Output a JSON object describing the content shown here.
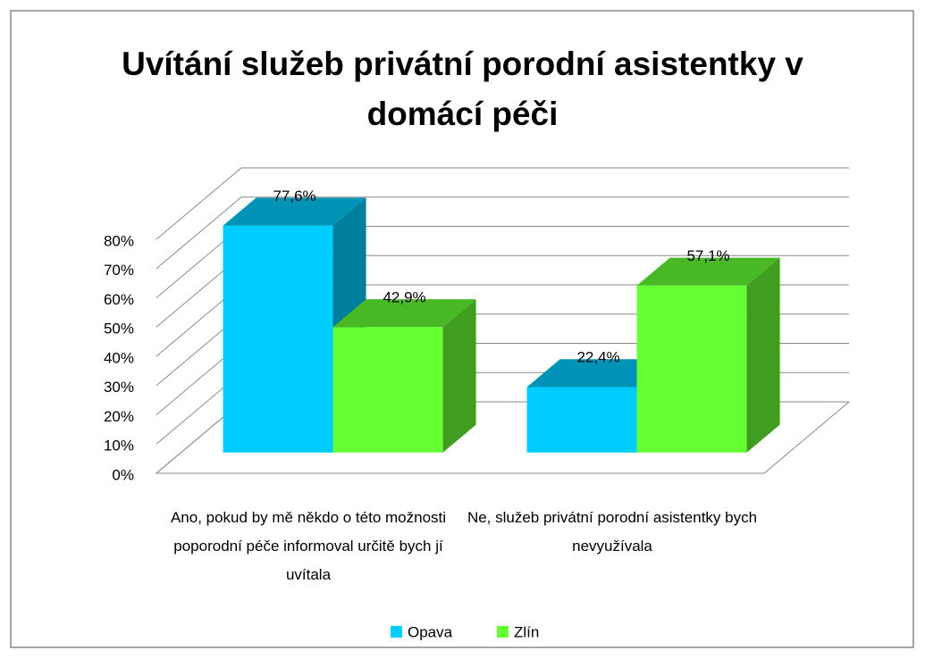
{
  "chart_data": {
    "type": "bar3d",
    "title": "Uvítání služeb privátní porodní asistentky v domácí péči",
    "categories": [
      "Ano, pokud by mě někdo o této možnosti poporodní péče informoval určitě bych jí uvítala",
      "Ne, služeb privátní porodní asistentky bych nevyužívala"
    ],
    "series": [
      {
        "name": "Opava",
        "color": "#00ccff",
        "values": [
          77.6,
          22.4
        ],
        "value_labels": [
          "77,6%",
          "22,4%"
        ]
      },
      {
        "name": "Zlín",
        "color": "#66ff33",
        "values": [
          42.9,
          57.1
        ],
        "value_labels": [
          "42,9%",
          "57,1%"
        ]
      }
    ],
    "ylim": [
      0,
      80
    ],
    "yticks": [
      {
        "value": 0,
        "label": "0%"
      },
      {
        "value": 10,
        "label": "10%"
      },
      {
        "value": 20,
        "label": "20%"
      },
      {
        "value": 30,
        "label": "30%"
      },
      {
        "value": 40,
        "label": "40%"
      },
      {
        "value": 50,
        "label": "50%"
      },
      {
        "value": 60,
        "label": "60%"
      },
      {
        "value": 70,
        "label": "70%"
      },
      {
        "value": 80,
        "label": "80%"
      }
    ],
    "grid": true,
    "legend": "bottom"
  }
}
